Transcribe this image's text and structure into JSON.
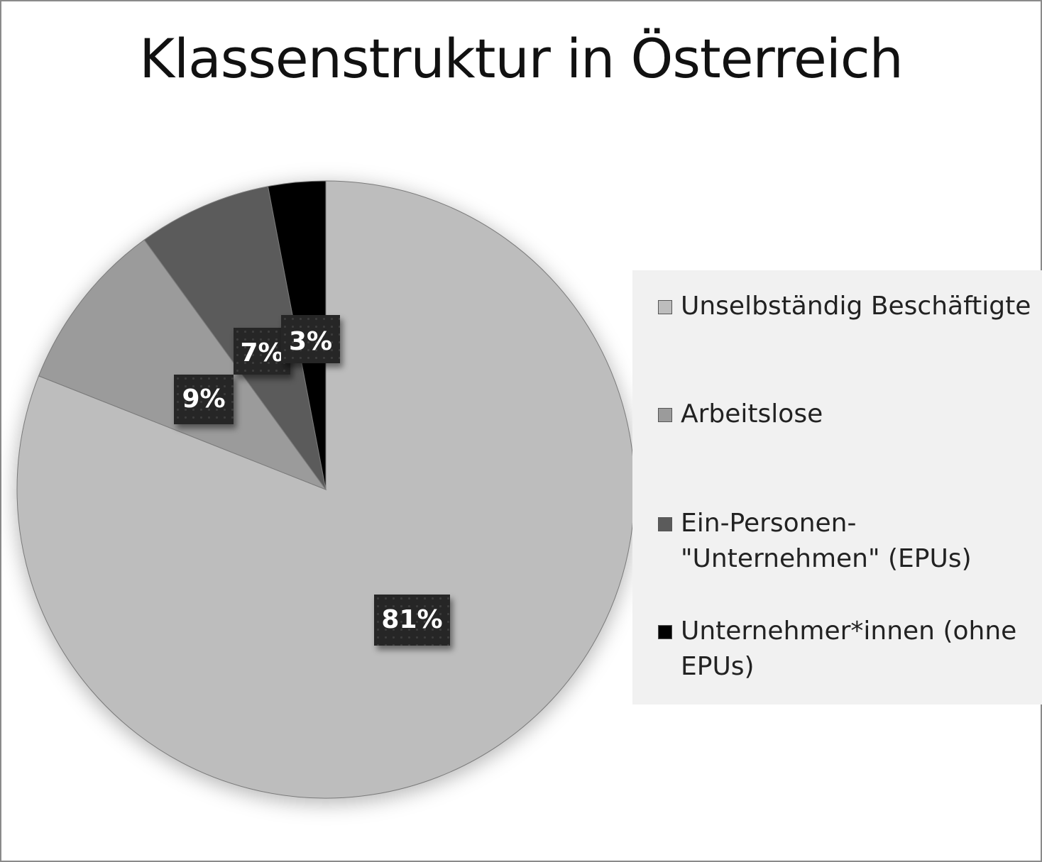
{
  "chart_data": {
    "type": "pie",
    "title": "Klassenstruktur in Österreich",
    "categories": [
      "Unselbständig Beschäftigte",
      "Arbeitslose",
      "Ein-Personen-\"Unternehmen\" (EPUs)",
      "Unternehmer*innen (ohne EPUs)"
    ],
    "values": [
      81,
      9,
      7,
      3
    ],
    "data_labels": [
      "81%",
      "9%",
      "7%",
      "3%"
    ],
    "colors": [
      "#bdbdbd",
      "#9b9b9b",
      "#5b5b5b",
      "#000000"
    ],
    "start_angle": "12 o'clock",
    "direction": "clockwise",
    "legend_position": "right"
  },
  "legend": [
    {
      "line1": "Unselbständig Beschäftigte",
      "line2": ""
    },
    {
      "line1": "Arbeitslose",
      "line2": ""
    },
    {
      "line1": "Ein-Personen-",
      "line2": "\"Unternehmen\" (EPUs)"
    },
    {
      "line1": "Unternehmer*innen (ohne",
      "line2": "EPUs)"
    }
  ]
}
